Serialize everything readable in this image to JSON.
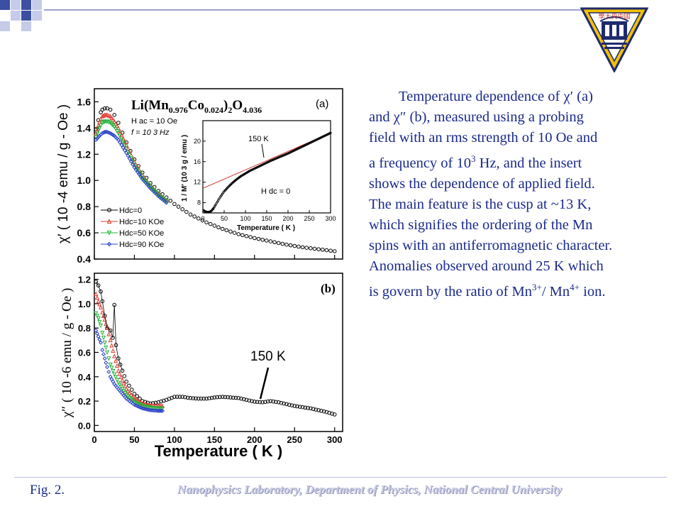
{
  "description": {
    "lines": [
      "Temperature dependence of χ′ (a)",
      "and χ″ (b), measured using a probing",
      "field with an rms strength of 10 Oe and",
      "a frequency of 10",
      "shows the dependence of applied field.",
      "The main feature is the cusp at ~13 K,",
      "which signifies the ordering of the Mn",
      "spins with an antiferromagnetic character.",
      "Anomalies observed around 25 K which",
      "is govern by the ratio of Mn"
    ],
    "line4_sup": "3",
    "line4_tail": " Hz, and the insert",
    "line10_sup1": "3+",
    "line10_mid": "/ Mn",
    "line10_sup2": "4+",
    "line10_tail": " ion."
  },
  "figure_label": "Fig. 2.",
  "footer": "Nanophysics Laboratory, Department of Physics, National Central University",
  "logo_text": "學大央中國",
  "colors": {
    "text_blue": "#1a2a8a",
    "accent": "#3b4fa3",
    "logo_gold": "#f2c200",
    "logo_navy": "#1f2a6e"
  },
  "chart_data": [
    {
      "panel": "a",
      "type": "scatter",
      "title": "Li(Mn0.976Co0.024)2O4.036",
      "panel_label": "(a)",
      "ylabel": "χ′ ( 10 -4 emu / g - Oe )",
      "xlim": [
        0,
        310
      ],
      "ylim": [
        0.4,
        1.7
      ],
      "yticks": [
        "0.4",
        "0.6",
        "0.8",
        "1.0",
        "1.2",
        "1.4",
        "1.6"
      ],
      "annotations": [
        "H ac = 10 Oe",
        "f = 10 3 Hz"
      ],
      "legend": [
        "Hdc=0",
        "Hdc=10 KOe",
        "Hdc=50 KOe",
        "Hdc=90 KOe"
      ],
      "series": [
        {
          "name": "Hdc=0",
          "color": "#000000",
          "marker": "circle",
          "x": [
            2,
            5,
            8,
            10,
            13,
            16,
            20,
            25,
            30,
            40,
            50,
            60,
            70,
            80,
            90,
            100,
            120,
            140,
            160,
            180,
            200,
            220,
            240,
            260,
            280,
            300
          ],
          "values": [
            1.39,
            1.46,
            1.52,
            1.54,
            1.55,
            1.55,
            1.54,
            1.5,
            1.44,
            1.29,
            1.16,
            1.06,
            0.98,
            0.92,
            0.87,
            0.82,
            0.74,
            0.68,
            0.63,
            0.59,
            0.56,
            0.535,
            0.51,
            0.49,
            0.475,
            0.46
          ]
        },
        {
          "name": "Hdc=10 KOe",
          "color": "#e03a2e",
          "marker": "triangle",
          "x": [
            2,
            5,
            8,
            10,
            13,
            16,
            20,
            25,
            30,
            40,
            50,
            60,
            70,
            80,
            90
          ],
          "values": [
            1.36,
            1.42,
            1.47,
            1.49,
            1.5,
            1.5,
            1.49,
            1.45,
            1.4,
            1.27,
            1.14,
            1.04,
            0.96,
            0.9,
            0.85
          ]
        },
        {
          "name": "Hdc=50 KOe",
          "color": "#22b43a",
          "marker": "triangle-down",
          "x": [
            2,
            5,
            8,
            10,
            13,
            16,
            20,
            25,
            30,
            40,
            50,
            60,
            70,
            80,
            90
          ],
          "values": [
            1.33,
            1.38,
            1.42,
            1.44,
            1.45,
            1.45,
            1.44,
            1.41,
            1.36,
            1.24,
            1.12,
            1.02,
            0.95,
            0.89,
            0.84
          ]
        },
        {
          "name": "Hdc=90 KOe",
          "color": "#2a3fc8",
          "marker": "diamond",
          "x": [
            2,
            5,
            8,
            10,
            13,
            16,
            20,
            25,
            30,
            40,
            50,
            60,
            70,
            80,
            90
          ],
          "values": [
            1.31,
            1.33,
            1.35,
            1.36,
            1.37,
            1.37,
            1.36,
            1.34,
            1.31,
            1.21,
            1.1,
            1.01,
            0.94,
            0.88,
            0.83
          ]
        }
      ],
      "inset": {
        "xlabel": "Temperature ( K )",
        "ylabel": "1 / M′ (10 3 g / emu )",
        "xlim": [
          0,
          300
        ],
        "ylim": [
          6,
          24
        ],
        "xticks": [
          "0",
          "50",
          "100",
          "150",
          "200",
          "250",
          "300"
        ],
        "yticks": [
          "8",
          "12",
          "16",
          "20"
        ],
        "annotation_temp": "150 K",
        "annotation_field": "H dc = 0",
        "data": {
          "x": [
            2,
            5,
            10,
            15,
            20,
            25,
            30,
            40,
            50,
            60,
            70,
            80,
            90,
            100,
            110,
            120,
            130,
            140,
            150,
            160,
            180,
            200,
            220,
            240,
            260,
            280,
            300
          ],
          "values": [
            6.5,
            6.3,
            6.2,
            6.2,
            6.4,
            6.9,
            7.6,
            9.0,
            10.2,
            11.1,
            11.9,
            12.6,
            13.2,
            13.7,
            14.2,
            14.6,
            15.0,
            15.4,
            15.8,
            16.2,
            16.9,
            17.6,
            18.4,
            19.2,
            20.0,
            20.8,
            21.6
          ]
        },
        "fit": {
          "x": [
            0,
            300
          ],
          "values": [
            10.8,
            21.6
          ]
        }
      }
    },
    {
      "panel": "b",
      "type": "scatter",
      "panel_label": "(b)",
      "xlabel": "Temperature ( K )",
      "ylabel": "χ″ ( 10 -6 emu / g - Oe )",
      "xlim": [
        0,
        310
      ],
      "ylim": [
        -0.05,
        1.25
      ],
      "xticks": [
        "0",
        "50",
        "100",
        "150",
        "200",
        "250",
        "300"
      ],
      "yticks": [
        "0.0",
        "0.2",
        "0.4",
        "0.6",
        "0.8",
        "1.0",
        "1.2"
      ],
      "annotation": "150 K",
      "series": [
        {
          "name": "Hdc=0",
          "color": "#000000",
          "marker": "circle",
          "x": [
            2,
            5,
            8,
            10,
            13,
            16,
            20,
            23,
            25,
            27,
            30,
            35,
            40,
            50,
            60,
            70,
            80,
            90,
            100,
            110,
            120,
            130,
            140,
            150,
            160,
            170,
            180,
            190,
            200,
            210,
            220,
            230,
            240,
            250,
            260,
            270,
            280,
            290,
            300
          ],
          "values": [
            1.18,
            1.15,
            1.1,
            1.02,
            0.9,
            0.8,
            0.78,
            0.72,
            0.99,
            0.66,
            0.55,
            0.45,
            0.36,
            0.26,
            0.2,
            0.18,
            0.19,
            0.21,
            0.235,
            0.235,
            0.225,
            0.22,
            0.22,
            0.23,
            0.235,
            0.23,
            0.225,
            0.21,
            0.195,
            0.19,
            0.2,
            0.19,
            0.175,
            0.16,
            0.15,
            0.14,
            0.125,
            0.11,
            0.09
          ]
        },
        {
          "name": "Hdc=10 KOe",
          "color": "#e03a2e",
          "marker": "triangle",
          "x": [
            2,
            5,
            8,
            10,
            13,
            16,
            20,
            25,
            30,
            35,
            40,
            50,
            60,
            70,
            80,
            85
          ],
          "values": [
            1.08,
            1.02,
            0.97,
            0.93,
            0.87,
            0.8,
            0.7,
            0.57,
            0.45,
            0.37,
            0.3,
            0.22,
            0.18,
            0.165,
            0.16,
            0.16
          ]
        },
        {
          "name": "Hdc=50 KOe",
          "color": "#22b43a",
          "marker": "triangle-down",
          "x": [
            2,
            5,
            8,
            10,
            13,
            16,
            20,
            25,
            30,
            35,
            40,
            50,
            60,
            70,
            80,
            85
          ],
          "values": [
            0.92,
            0.88,
            0.82,
            0.76,
            0.68,
            0.6,
            0.5,
            0.42,
            0.35,
            0.3,
            0.25,
            0.19,
            0.16,
            0.145,
            0.14,
            0.14
          ]
        },
        {
          "name": "Hdc=90 KOe",
          "color": "#2a3fc8",
          "marker": "diamond",
          "x": [
            2,
            5,
            8,
            10,
            13,
            16,
            20,
            25,
            30,
            35,
            40,
            50,
            60,
            70,
            80,
            85
          ],
          "values": [
            0.78,
            0.73,
            0.68,
            0.62,
            0.55,
            0.48,
            0.4,
            0.34,
            0.3,
            0.26,
            0.22,
            0.17,
            0.14,
            0.125,
            0.12,
            0.12
          ]
        }
      ]
    }
  ]
}
